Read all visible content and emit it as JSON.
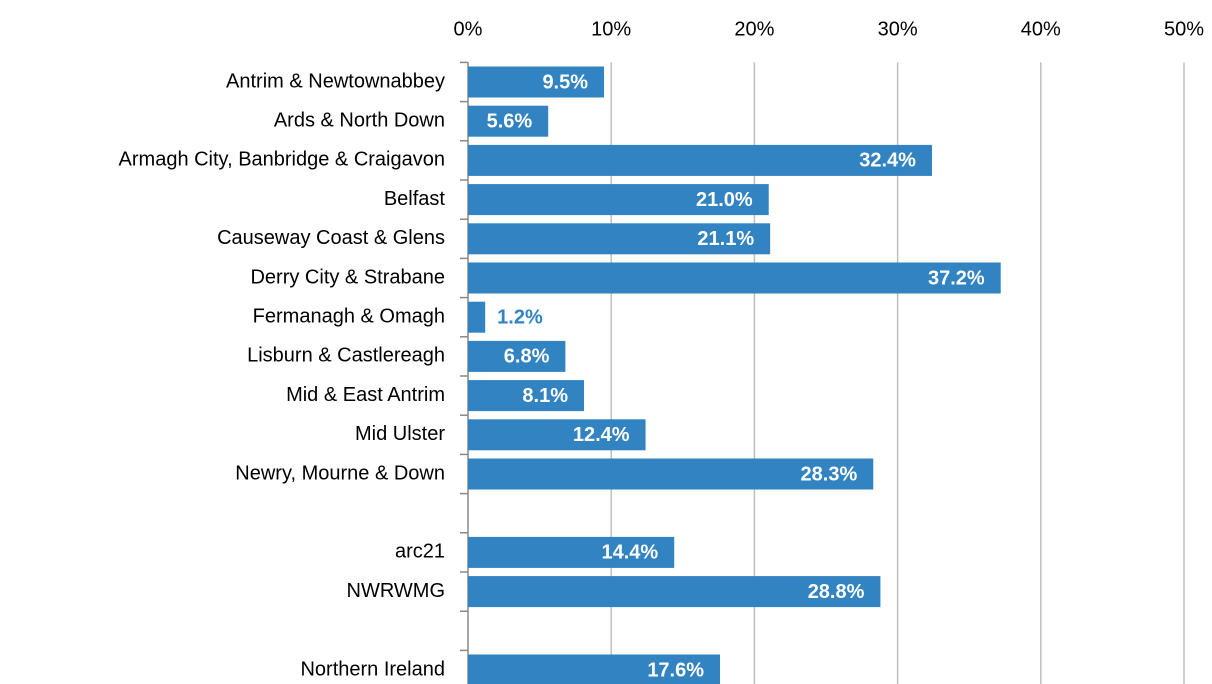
{
  "chart_data": {
    "type": "hbar",
    "categories": [
      "Antrim & Newtownabbey",
      "Ards & North Down",
      "Armagh City, Banbridge & Craigavon",
      "Belfast",
      "Causeway Coast & Glens",
      "Derry City & Strabane",
      "Fermanagh & Omagh",
      "Lisburn & Castlereagh",
      "Mid & East Antrim",
      "Mid Ulster",
      "Newry, Mourne & Down",
      null,
      "arc21",
      "NWRWMG",
      null,
      "Northern Ireland"
    ],
    "values": [
      9.5,
      5.6,
      32.4,
      21.0,
      21.1,
      37.2,
      1.2,
      6.8,
      8.1,
      12.4,
      28.3,
      null,
      14.4,
      28.8,
      null,
      17.6
    ],
    "value_labels": [
      "9.5%",
      "5.6%",
      "32.4%",
      "21.0%",
      "21.1%",
      "37.2%",
      "1.2%",
      "6.8%",
      "8.1%",
      "12.4%",
      "28.3%",
      null,
      "14.4%",
      "28.8%",
      null,
      "17.6%"
    ],
    "color": "#3183c2",
    "xlim": [
      0,
      50
    ],
    "xticks": [
      {
        "value": 0,
        "label": "0%"
      },
      {
        "value": 10,
        "label": "10%"
      },
      {
        "value": 20,
        "label": "20%"
      },
      {
        "value": 30,
        "label": "30%"
      },
      {
        "value": 40,
        "label": "40%"
      },
      {
        "value": 50,
        "label": "50%"
      }
    ],
    "grid": true
  }
}
